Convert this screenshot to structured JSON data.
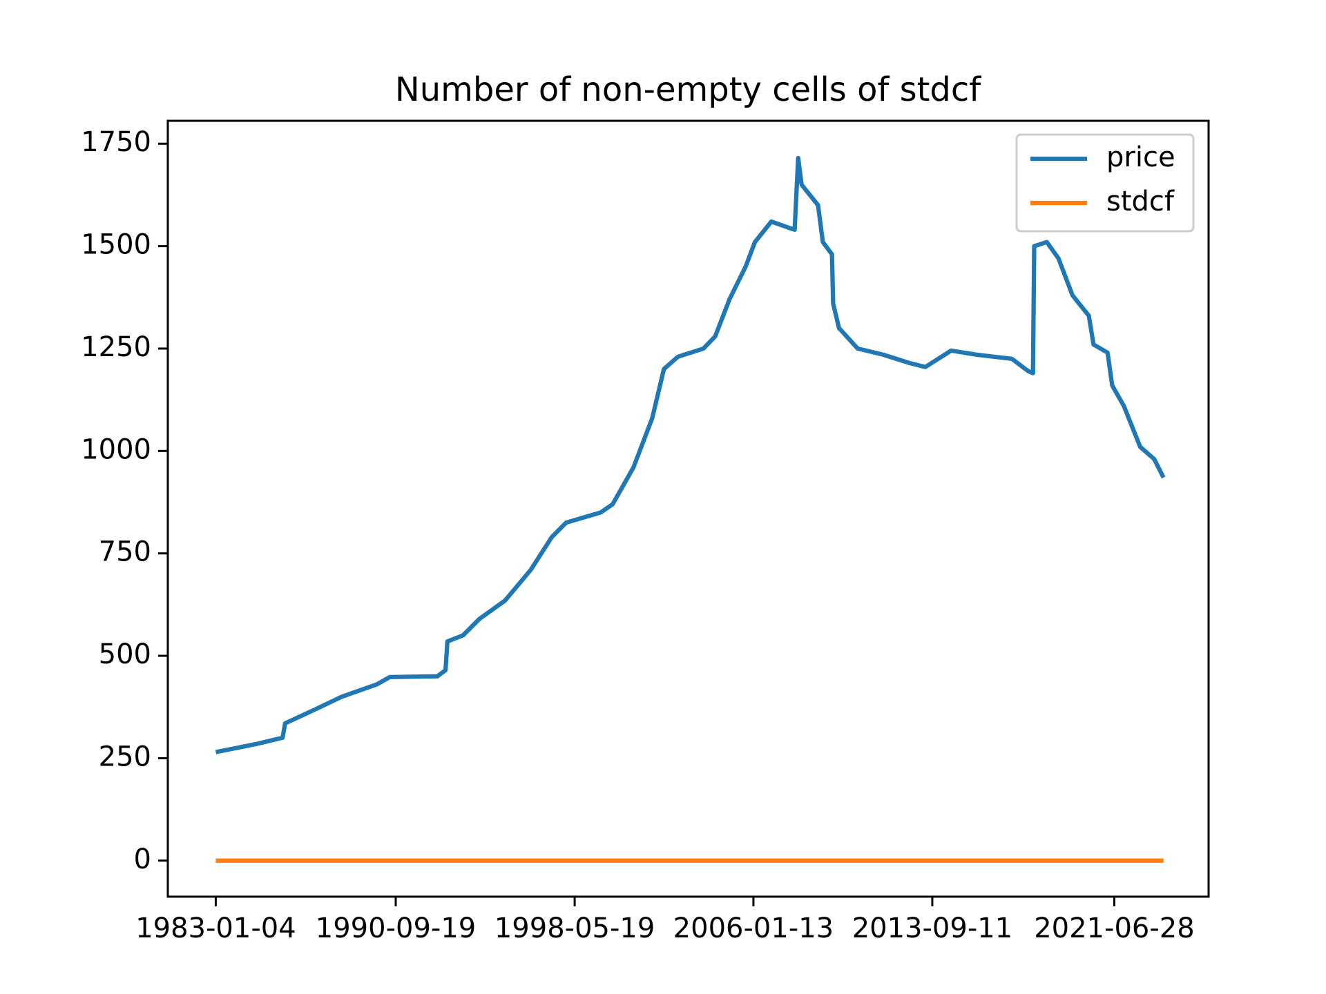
{
  "chart_data": {
    "type": "line",
    "title": "Number of non-empty cells of stdcf",
    "x": [
      "1983-01-04",
      "1984-10-08",
      "1985-11-14",
      "1985-12-24",
      "1987-04-20",
      "1988-05-26",
      "1989-11-24",
      "1990-06-18",
      "1992-07-01",
      "1992-11-06",
      "1992-12-05",
      "1993-08-07",
      "1994-04-20",
      "1995-05-27",
      "1996-07-02",
      "1997-05-27",
      "1998-01-05",
      "1999-07-02",
      "2000-01-03",
      "2000-11-24",
      "2001-09-13",
      "2002-03-15",
      "2002-10-20",
      "2003-11-24",
      "2004-05-26",
      "2005-01-03",
      "2005-09-13",
      "2006-02-06",
      "2006-10-20",
      "2007-10-20",
      "2007-12-14",
      "2008-02-06",
      "2008-10-20",
      "2009-01-03",
      "2009-05-26",
      "2009-06-13",
      "2009-09-13",
      "2010-07-02",
      "2011-08-07",
      "2012-09-13",
      "2013-05-26",
      "2014-07-02",
      "2015-08-07",
      "2017-02-06",
      "2017-10-20",
      "2018-01-03",
      "2018-01-22",
      "2018-08-07",
      "2019-02-06",
      "2019-09-13",
      "2020-05-26",
      "2020-08-07",
      "2021-03-15",
      "2021-05-26",
      "2021-11-24",
      "2022-08-07",
      "2023-03-15",
      "2023-08-07"
    ],
    "series": [
      {
        "name": "price",
        "color": "#1f77b4",
        "values": [
          265,
          285,
          300,
          335,
          370,
          400,
          430,
          448,
          450,
          465,
          535,
          550,
          590,
          635,
          710,
          790,
          825,
          850,
          870,
          960,
          1080,
          1200,
          1230,
          1250,
          1280,
          1370,
          1450,
          1510,
          1560,
          1540,
          1715,
          1650,
          1600,
          1510,
          1480,
          1360,
          1300,
          1250,
          1235,
          1215,
          1205,
          1245,
          1235,
          1225,
          1195,
          1190,
          1500,
          1510,
          1470,
          1380,
          1330,
          1260,
          1240,
          1160,
          1110,
          1010,
          980,
          935
        ]
      },
      {
        "name": "stdcf",
        "color": "#ff7f0e",
        "values": [
          0,
          0,
          0,
          0,
          0,
          0,
          0,
          0,
          0,
          0,
          0,
          0,
          0,
          0,
          0,
          0,
          0,
          0,
          0,
          0,
          0,
          0,
          0,
          0,
          0,
          0,
          0,
          0,
          0,
          0,
          0,
          0,
          0,
          0,
          0,
          0,
          0,
          0,
          0,
          0,
          0,
          0,
          0,
          0,
          0,
          0,
          0,
          0,
          0,
          0,
          0,
          0,
          0,
          0,
          0,
          0,
          0,
          0
        ]
      }
    ],
    "xlim": [
      "1980-12-15",
      "2025-07-12"
    ],
    "xticks": [
      "1983-01-04",
      "1990-09-19",
      "1998-05-19",
      "2006-01-13",
      "2013-09-11",
      "2021-06-28"
    ],
    "ylim": [
      -88,
      1806
    ],
    "yticks": [
      0,
      250,
      500,
      750,
      1000,
      1250,
      1500,
      1750
    ],
    "legend": "upper right"
  }
}
